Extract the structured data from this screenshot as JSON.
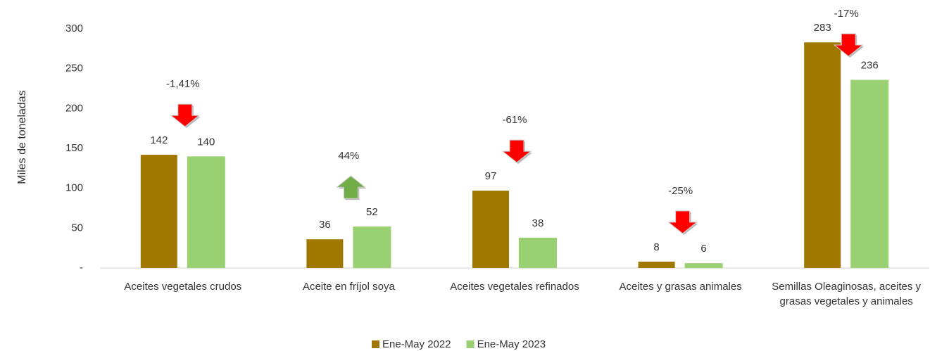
{
  "chart_data": {
    "type": "bar",
    "y_label": "Miles de toneladas",
    "categories": [
      "Aceites vegetales crudos",
      "Aceite en fríjol soya",
      "Aceites vegetales refinados",
      "Aceites y grasas animales",
      "Semillas Oleaginosas, aceites y grasas vegetales y animales"
    ],
    "series": [
      {
        "name": "Ene-May 2022",
        "color": "#a07800",
        "values": [
          142,
          36,
          97,
          8,
          283
        ]
      },
      {
        "name": "Ene-May 2023",
        "color": "#99d071",
        "values": [
          140,
          52,
          38,
          6,
          236
        ]
      }
    ],
    "annotations": [
      {
        "text": "-1,41%",
        "direction": "down",
        "color": "#ff0000"
      },
      {
        "text": "44%",
        "direction": "up",
        "color": "#70ad47"
      },
      {
        "text": "-61%",
        "direction": "down",
        "color": "#ff0000"
      },
      {
        "text": "-25%",
        "direction": "down",
        "color": "#ff0000"
      },
      {
        "text": "-17%",
        "direction": "down",
        "color": "#ff0000"
      }
    ],
    "ylim": [
      0,
      300
    ],
    "yticks": [
      {
        "value": 0,
        "label": "-"
      },
      50,
      100,
      150,
      200,
      250,
      300
    ],
    "grid": false,
    "legend": "bottom"
  }
}
